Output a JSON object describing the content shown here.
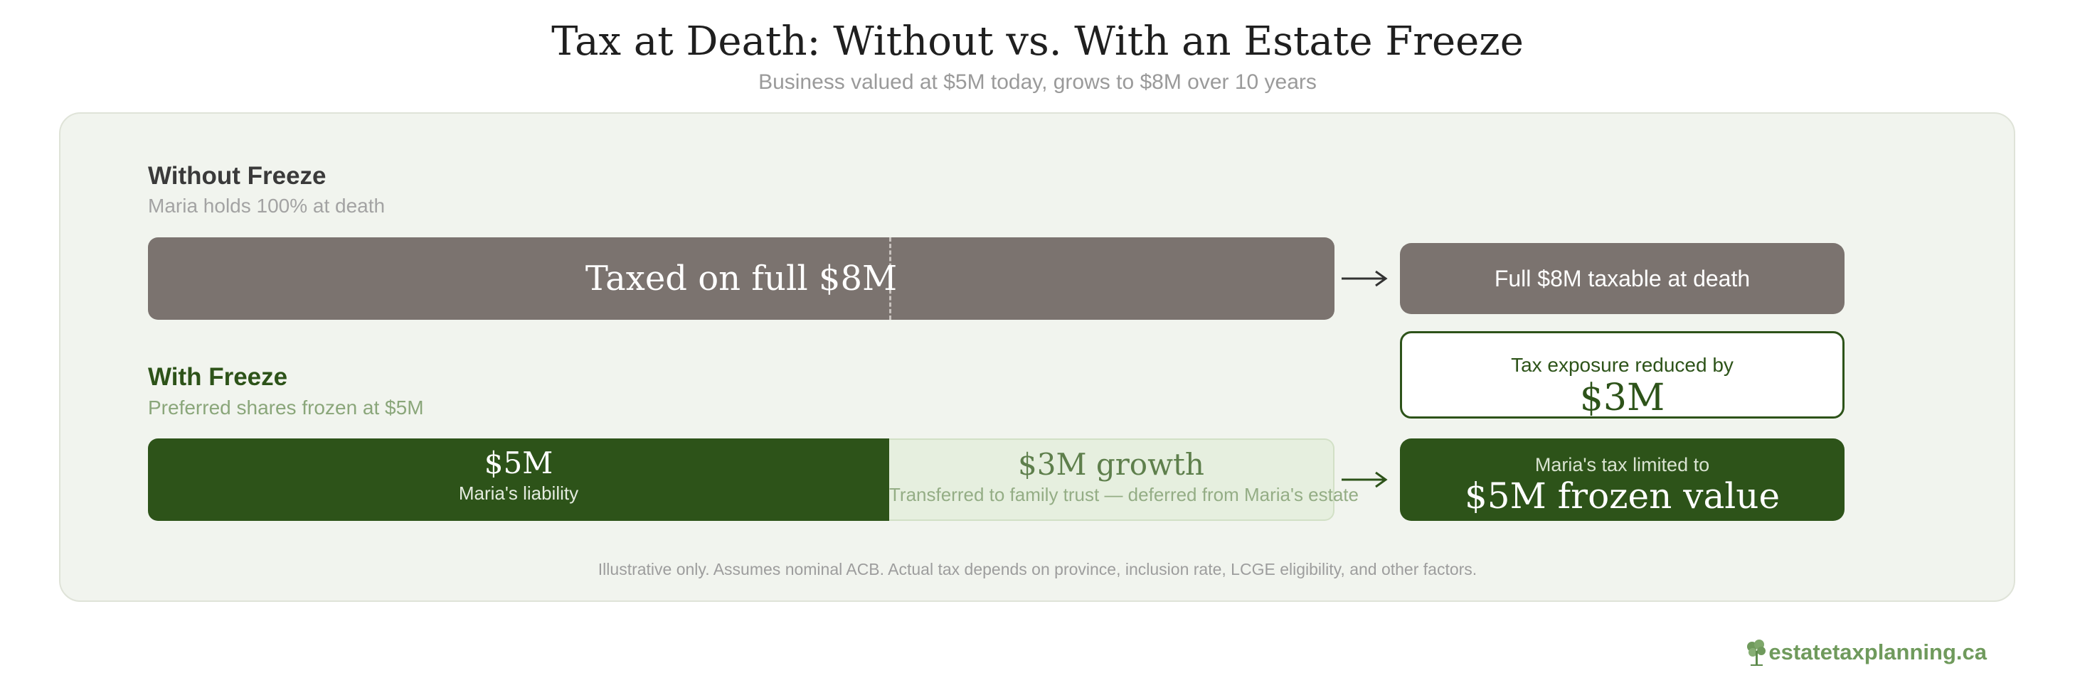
{
  "header": {
    "title": "Tax at Death: Without vs. With an Estate Freeze",
    "subtitle": "Business valued at $5M today, grows to $8M over 10 years"
  },
  "without_freeze": {
    "title": "Without Freeze",
    "subtitle": "Maria holds 100% at death",
    "bar_label": "Taxed on full $8M",
    "result": "Full $8M taxable at death"
  },
  "callout": {
    "label": "Tax exposure reduced by",
    "value": "$3M"
  },
  "with_freeze": {
    "title": "With Freeze",
    "subtitle": "Preferred shares frozen at $5M",
    "segment_frozen": {
      "value": "$5M",
      "label": "Maria's liability"
    },
    "segment_growth": {
      "value": "$3M growth",
      "label": "Transferred to family trust — deferred from Maria's estate"
    },
    "result_label": "Maria's tax limited to",
    "result_value": "$5M frozen value"
  },
  "footnote": "Illustrative only. Assumes nominal ACB. Actual tax depends on province, inclusion rate, LCGE eligibility, and other factors.",
  "brand": {
    "name": "estatetaxplanning.ca",
    "icon": "tree-icon"
  },
  "colors": {
    "gray": "#7b736f",
    "dark_green": "#2d5319",
    "light_green": "#e6efdf",
    "panel": "#f1f4ee"
  }
}
